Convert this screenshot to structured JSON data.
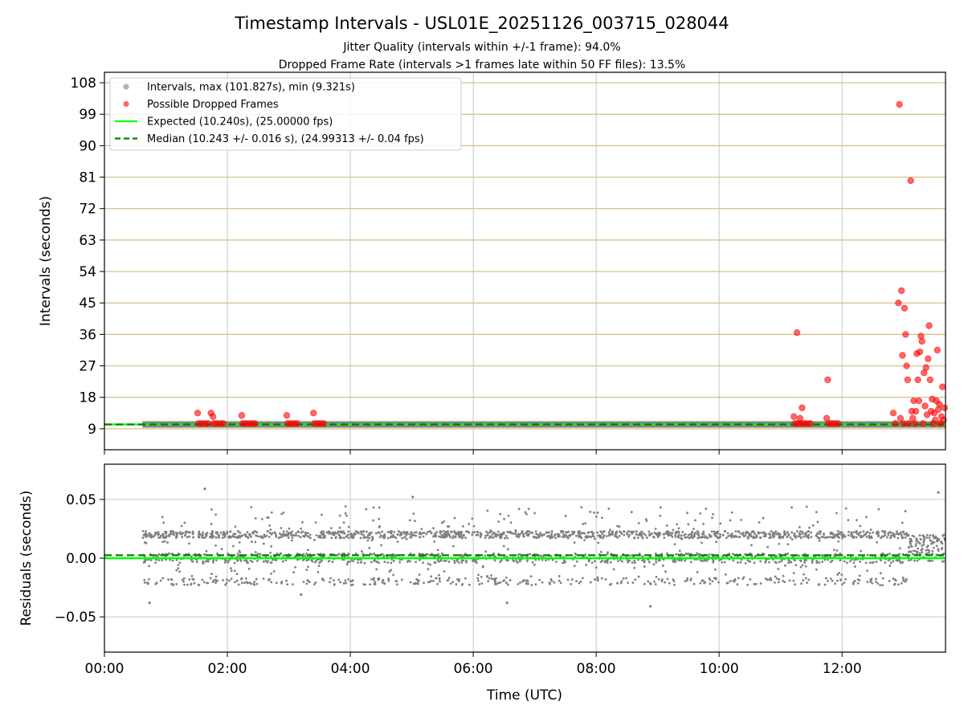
{
  "figure": {
    "title": "Timestamp Intervals - USL01E_20251126_003715_028044",
    "subtitle_1": "Jitter Quality (intervals within +/-1 frame): 94.0%",
    "subtitle_2": "Dropped Frame Rate (intervals >1 frames late within 50 FF files): 13.5%"
  },
  "colors": {
    "intervals": "#808080",
    "dropped": "#ff0000",
    "expected": "#00ff00",
    "median": "#008000",
    "y_grid_top": "#d2c084",
    "grid": "#c8c8c8"
  },
  "chart_data": [
    {
      "type": "scatter",
      "panel": "top",
      "ylabel": "Intervals (seconds)",
      "xlim": [
        "00:00",
        "13:41"
      ],
      "ylim": [
        3,
        111
      ],
      "y_ticks": [
        9,
        18,
        27,
        36,
        45,
        54,
        63,
        72,
        81,
        90,
        99,
        108
      ],
      "x_ticks": [
        "00:00",
        "02:00",
        "04:00",
        "06:00",
        "08:00",
        "10:00",
        "12:00"
      ],
      "grid": true,
      "legend_position": "top-left",
      "legend": [
        {
          "label": "Intervals, max (101.827s), min (9.321s)",
          "marker": "dot",
          "color": "#808080"
        },
        {
          "label": "Possible Dropped Frames",
          "marker": "dot",
          "color": "#ff0000"
        },
        {
          "label": "Expected (10.240s), (25.00000 fps)",
          "marker": "line",
          "color": "#00ff00"
        },
        {
          "label": "Median (10.243 +/- 0.016 s), (24.99313 +/- 0.04 fps)",
          "marker": "dashed",
          "color": "#008000"
        }
      ],
      "series": [
        {
          "name": "Intervals, max (101.827s), min (9.321s)",
          "kind": "band",
          "x_start": "00:37",
          "x_end": "13:41",
          "y": 10.24
        },
        {
          "name": "Expected (10.240s), (25.00000 fps)",
          "kind": "hline",
          "y": 10.24
        },
        {
          "name": "Median (10.243 +/- 0.016 s), (24.99313 +/- 0.04 fps)",
          "kind": "hline",
          "y": 10.243
        },
        {
          "name": "Possible Dropped Frames",
          "kind": "points",
          "points": [
            {
              "x": "01:31",
              "y": 13.5
            },
            {
              "x": "01:32",
              "y": 10.5
            },
            {
              "x": "01:35",
              "y": 10.5
            },
            {
              "x": "01:38",
              "y": 10.5
            },
            {
              "x": "01:41",
              "y": 10.5
            },
            {
              "x": "01:44",
              "y": 13.5
            },
            {
              "x": "01:46",
              "y": 12.5
            },
            {
              "x": "01:47",
              "y": 10.5
            },
            {
              "x": "01:50",
              "y": 10.5
            },
            {
              "x": "01:53",
              "y": 10.5
            },
            {
              "x": "01:56",
              "y": 10.5
            },
            {
              "x": "02:14",
              "y": 12.8
            },
            {
              "x": "02:15",
              "y": 10.5
            },
            {
              "x": "02:18",
              "y": 10.5
            },
            {
              "x": "02:21",
              "y": 10.5
            },
            {
              "x": "02:24",
              "y": 10.5
            },
            {
              "x": "02:27",
              "y": 10.5
            },
            {
              "x": "02:58",
              "y": 12.8
            },
            {
              "x": "02:59",
              "y": 10.5
            },
            {
              "x": "03:02",
              "y": 10.5
            },
            {
              "x": "03:05",
              "y": 10.5
            },
            {
              "x": "03:08",
              "y": 10.5
            },
            {
              "x": "03:24",
              "y": 13.5
            },
            {
              "x": "03:25",
              "y": 10.5
            },
            {
              "x": "03:28",
              "y": 10.5
            },
            {
              "x": "03:31",
              "y": 10.5
            },
            {
              "x": "03:34",
              "y": 10.5
            },
            {
              "x": "11:13",
              "y": 12.5
            },
            {
              "x": "11:14",
              "y": 10.5
            },
            {
              "x": "11:16",
              "y": 36.5
            },
            {
              "x": "11:17",
              "y": 10.5
            },
            {
              "x": "11:19",
              "y": 12.0
            },
            {
              "x": "11:20",
              "y": 10.5
            },
            {
              "x": "11:21",
              "y": 15.0
            },
            {
              "x": "11:23",
              "y": 10.5
            },
            {
              "x": "11:26",
              "y": 10.5
            },
            {
              "x": "11:29",
              "y": 10.5
            },
            {
              "x": "11:45",
              "y": 12.0
            },
            {
              "x": "11:46",
              "y": 23.0
            },
            {
              "x": "11:47",
              "y": 10.5
            },
            {
              "x": "11:50",
              "y": 10.5
            },
            {
              "x": "11:53",
              "y": 10.5
            },
            {
              "x": "11:56",
              "y": 10.5
            },
            {
              "x": "12:50",
              "y": 13.5
            },
            {
              "x": "12:52",
              "y": 10.5
            },
            {
              "x": "12:55",
              "y": 45.0
            },
            {
              "x": "12:56",
              "y": 101.8
            },
            {
              "x": "12:57",
              "y": 12.0
            },
            {
              "x": "12:58",
              "y": 48.5
            },
            {
              "x": "12:59",
              "y": 30.0
            },
            {
              "x": "13:00",
              "y": 10.5
            },
            {
              "x": "13:01",
              "y": 43.5
            },
            {
              "x": "13:02",
              "y": 36.0
            },
            {
              "x": "13:03",
              "y": 27.0
            },
            {
              "x": "13:04",
              "y": 23.0
            },
            {
              "x": "13:05",
              "y": 10.5
            },
            {
              "x": "13:07",
              "y": 80.0
            },
            {
              "x": "13:08",
              "y": 14.0
            },
            {
              "x": "13:09",
              "y": 12.0
            },
            {
              "x": "13:10",
              "y": 17.0
            },
            {
              "x": "13:11",
              "y": 10.5
            },
            {
              "x": "13:12",
              "y": 14.0
            },
            {
              "x": "13:13",
              "y": 30.5
            },
            {
              "x": "13:14",
              "y": 23.0
            },
            {
              "x": "13:15",
              "y": 17.0
            },
            {
              "x": "13:16",
              "y": 31.0
            },
            {
              "x": "13:17",
              "y": 35.5
            },
            {
              "x": "13:18",
              "y": 34.0
            },
            {
              "x": "13:19",
              "y": 10.5
            },
            {
              "x": "13:20",
              "y": 25.0
            },
            {
              "x": "13:21",
              "y": 15.5
            },
            {
              "x": "13:22",
              "y": 26.5
            },
            {
              "x": "13:23",
              "y": 13.0
            },
            {
              "x": "13:24",
              "y": 29.0
            },
            {
              "x": "13:25",
              "y": 38.5
            },
            {
              "x": "13:26",
              "y": 23.0
            },
            {
              "x": "13:27",
              "y": 14.0
            },
            {
              "x": "13:28",
              "y": 17.5
            },
            {
              "x": "13:29",
              "y": 10.5
            },
            {
              "x": "13:30",
              "y": 13.5
            },
            {
              "x": "13:31",
              "y": 11.5
            },
            {
              "x": "13:32",
              "y": 17.0
            },
            {
              "x": "13:33",
              "y": 31.5
            },
            {
              "x": "13:34",
              "y": 14.5
            },
            {
              "x": "13:35",
              "y": 16.0
            },
            {
              "x": "13:36",
              "y": 10.5
            },
            {
              "x": "13:37",
              "y": 12.5
            },
            {
              "x": "13:38",
              "y": 21.0
            },
            {
              "x": "13:39",
              "y": 11.5
            },
            {
              "x": "13:40",
              "y": 15.0
            }
          ]
        }
      ]
    },
    {
      "type": "scatter",
      "panel": "bottom",
      "xlabel": "Time (UTC)",
      "ylabel": "Residuals (seconds)",
      "xlim": [
        "00:00",
        "13:41"
      ],
      "ylim": [
        -0.08,
        0.08
      ],
      "y_ticks": [
        0.05,
        0.0,
        -0.05
      ],
      "y_tick_labels": [
        "0.05",
        "0.00",
        "−0.05"
      ],
      "x_ticks": [
        "00:00",
        "02:00",
        "04:00",
        "06:00",
        "08:00",
        "10:00",
        "12:00"
      ],
      "grid": true,
      "series": [
        {
          "name": "Expected",
          "kind": "hline",
          "y": 0.0
        },
        {
          "name": "Median",
          "kind": "hline",
          "y": 0.0025
        },
        {
          "name": "Residuals",
          "kind": "cloud",
          "x_start": "00:37",
          "x_end": "13:41",
          "levels": [
            0.02,
            0.0,
            -0.02
          ],
          "spread": 0.045,
          "outliers": [
            {
              "x": "00:44",
              "y": -0.038
            },
            {
              "x": "01:38",
              "y": 0.059
            },
            {
              "x": "03:12",
              "y": -0.031
            },
            {
              "x": "05:01",
              "y": 0.052
            },
            {
              "x": "06:33",
              "y": -0.038
            },
            {
              "x": "08:53",
              "y": -0.041
            },
            {
              "x": "13:34",
              "y": 0.056
            }
          ]
        }
      ]
    }
  ]
}
